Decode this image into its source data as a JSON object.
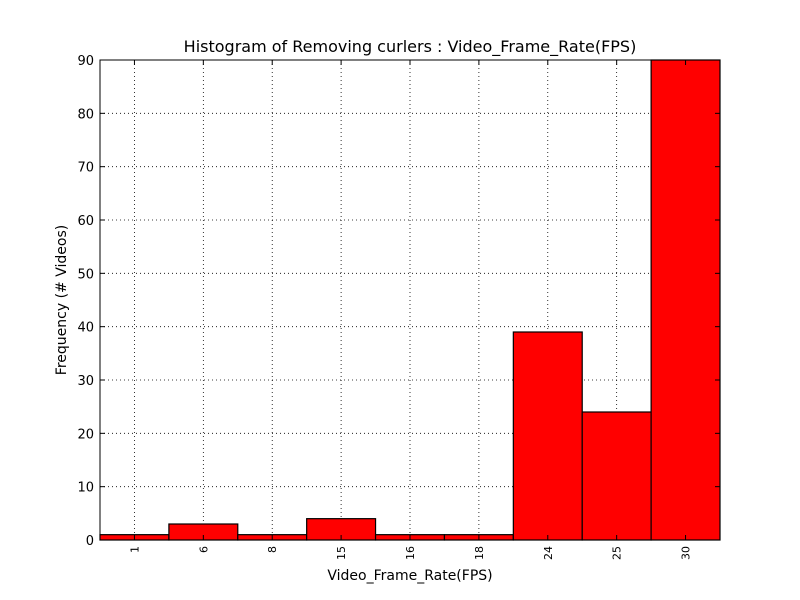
{
  "chart_data": {
    "type": "bar",
    "title": "Histogram of Removing curlers : Video_Frame_Rate(FPS)",
    "xlabel": "Video_Frame_Rate(FPS)",
    "ylabel": "Frequency (# Videos)",
    "categories": [
      "1",
      "6",
      "8",
      "15",
      "16",
      "18",
      "24",
      "25",
      "30"
    ],
    "values": [
      1,
      3,
      1,
      4,
      1,
      1,
      39,
      24,
      90
    ],
    "ylim": [
      0,
      90
    ],
    "yticks": [
      0,
      10,
      20,
      30,
      40,
      50,
      60,
      70,
      80,
      90
    ],
    "grid": true,
    "bar_color": "#ff0000",
    "edge_color": "#000000"
  }
}
